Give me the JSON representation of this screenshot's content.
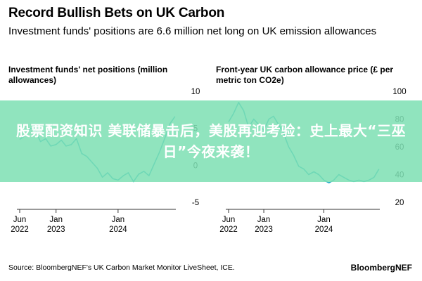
{
  "header": {
    "title": "Record Bullish Bets on UK Carbon",
    "subtitle": "Investment funds' positions are 6.6 million net long on UK emission allowances"
  },
  "overlay": {
    "text": "股票配资知识 美联储暴击后，美股再迎考验：史上最大“三巫日”今夜来袭！"
  },
  "footer": {
    "source": "Source: BloombergNEF's UK Carbon Market Monitor LiveSheet, ICE.",
    "brand": "BloombergNEF"
  },
  "colors": {
    "line": "#1aa8c6",
    "axis": "#333333",
    "banner": "#7edfb3"
  },
  "chart_data": [
    {
      "type": "line",
      "title": "Investment funds' net positions (million allowances)",
      "x_ticks": [
        "Jun 2022",
        "Jan 2023",
        "Jan 2024"
      ],
      "y_ticks": [
        10,
        5,
        0,
        -5
      ],
      "ylim": [
        -5,
        10
      ],
      "grid": false,
      "x_start": "2022-06-01",
      "x_end": "2024-12-06",
      "series": [
        {
          "x": [
            "2022-06-01",
            "2022-07-01",
            "2022-08-01",
            "2022-09-01",
            "2022-10-01",
            "2022-11-01",
            "2022-12-01",
            "2023-01-01",
            "2023-02-01",
            "2023-03-01",
            "2023-04-01",
            "2023-05-01",
            "2023-06-01",
            "2023-07-01",
            "2023-08-01",
            "2023-09-01",
            "2023-10-01",
            "2023-11-01",
            "2023-12-01",
            "2024-01-01",
            "2024-02-01",
            "2024-03-01",
            "2024-04-01",
            "2024-05-01",
            "2024-06-01",
            "2024-07-01",
            "2024-08-01",
            "2024-09-01",
            "2024-10-01",
            "2024-11-01",
            "2024-12-01"
          ],
          "values": [
            3.5,
            4.0,
            5.0,
            4.8,
            3.2,
            3.6,
            2.6,
            2.8,
            3.4,
            2.6,
            2.8,
            3.6,
            1.6,
            1.2,
            0.4,
            -0.4,
            -1.6,
            -1.0,
            -1.8,
            -2.0,
            -1.4,
            -1.0,
            -2.2,
            -1.2,
            -0.8,
            -1.4,
            0.2,
            1.8,
            3.6,
            5.6,
            6.6
          ]
        }
      ]
    },
    {
      "type": "line",
      "title": "Front-year UK carbon allowance price (£ per metric ton CO2e)",
      "x_ticks": [
        "Jun 2022",
        "Jan 2023",
        "Jan 2024"
      ],
      "y_ticks": [
        100,
        80,
        60,
        40,
        20
      ],
      "ylim": [
        20,
        100
      ],
      "grid": false,
      "x_start": "2022-06-01",
      "x_end": "2024-12-06",
      "series": [
        {
          "x": [
            "2022-06-01",
            "2022-07-01",
            "2022-08-01",
            "2022-09-01",
            "2022-10-01",
            "2022-11-01",
            "2022-12-01",
            "2023-01-01",
            "2023-02-01",
            "2023-03-01",
            "2023-04-01",
            "2023-05-01",
            "2023-06-01",
            "2023-07-01",
            "2023-08-01",
            "2023-09-01",
            "2023-10-01",
            "2023-11-01",
            "2023-12-01",
            "2024-01-01",
            "2024-02-01",
            "2024-03-01",
            "2024-04-01",
            "2024-05-01",
            "2024-06-01",
            "2024-07-01",
            "2024-08-01",
            "2024-09-01",
            "2024-10-01",
            "2024-11-01",
            "2024-12-01"
          ],
          "values": [
            78,
            84,
            92,
            86,
            74,
            80,
            76,
            72,
            80,
            82,
            76,
            70,
            60,
            54,
            46,
            44,
            40,
            42,
            40,
            36,
            34,
            36,
            40,
            38,
            36,
            35,
            36,
            35,
            36,
            38,
            44
          ]
        }
      ]
    }
  ]
}
